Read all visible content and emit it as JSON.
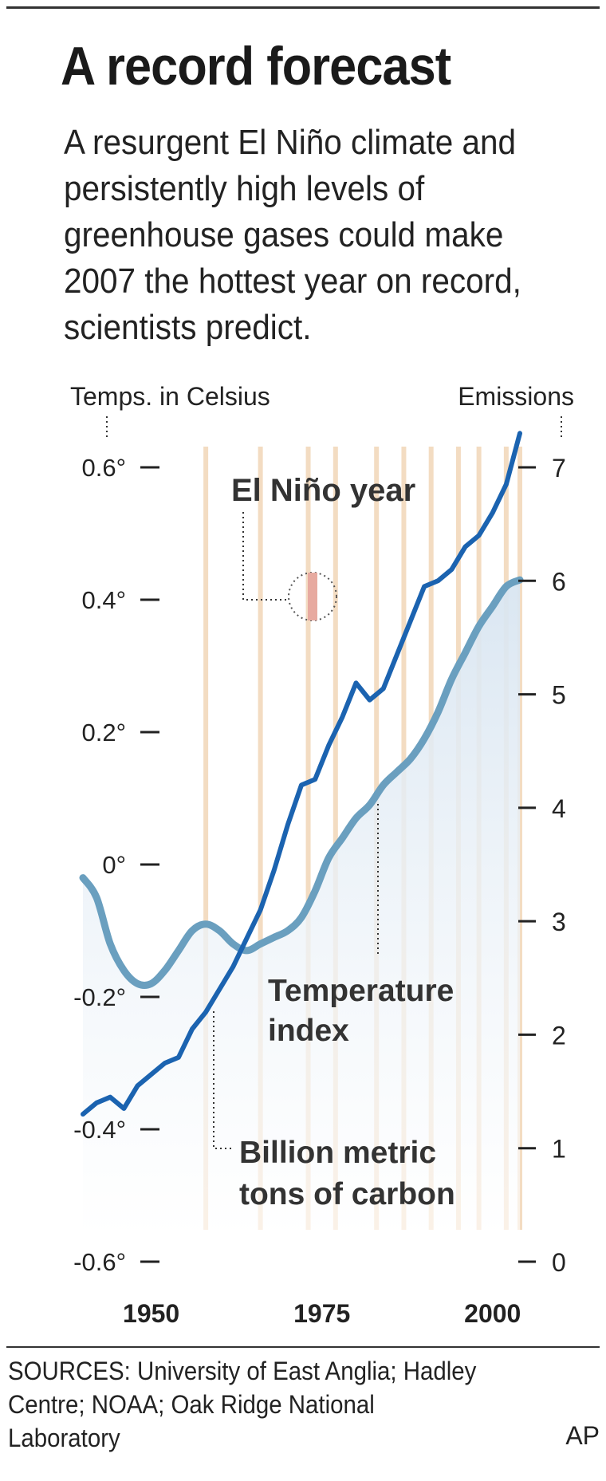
{
  "title": "A record forecast",
  "subtitle": "A resurgent El Niño climate and persistently high levels of greenhouse gases could make 2007 the hottest year on record, scientists predict.",
  "sources": "SOURCES: University of East Anglia; Hadley Centre; NOAA; Oak Ridge National Laboratory",
  "credit": "AP",
  "colors": {
    "temperature": "#6a9fbf",
    "temperature_fill": "#dde8f2",
    "emissions": "#1b63b0",
    "el_nino": "#f3dcc2",
    "el_nino_marker": "#e7aaa0"
  },
  "chart_data": {
    "type": "line",
    "y_left_label": "Temps. in Celsius",
    "y_right_label": "Emissions",
    "y_left_range": [
      -0.6,
      0.6
    ],
    "y_right_range": [
      0,
      7
    ],
    "x_range": [
      1940,
      2004
    ],
    "x_ticks": [
      "1950",
      "1975",
      "2000"
    ],
    "x_tick_values": [
      1950,
      1975,
      2000
    ],
    "y_left_ticks": [
      "0.6°",
      "0.4°",
      "0.2°",
      "0°",
      "-0.2°",
      "-0.4°",
      "-0.6°"
    ],
    "y_left_tick_values": [
      0.6,
      0.4,
      0.2,
      0,
      -0.2,
      -0.4,
      -0.6
    ],
    "y_right_ticks": [
      "7",
      "6",
      "5",
      "4",
      "3",
      "2",
      "1",
      "0"
    ],
    "y_right_tick_values": [
      7,
      6,
      5,
      4,
      3,
      2,
      1,
      0
    ],
    "el_nino_years": [
      1958,
      1966,
      1973,
      1977,
      1983,
      1987,
      1991,
      1995,
      1998,
      2002,
      2004
    ],
    "legend_el_nino": "El Niño year",
    "label_temperature": "Temperature index",
    "label_emissions": "Billion metric tons of carbon",
    "series": [
      {
        "name": "Temperature index",
        "axis": "left",
        "x": [
          1940,
          1942,
          1944,
          1946,
          1948,
          1950,
          1952,
          1954,
          1956,
          1958,
          1960,
          1962,
          1964,
          1966,
          1968,
          1970,
          1972,
          1974,
          1976,
          1978,
          1980,
          1982,
          1984,
          1986,
          1988,
          1990,
          1992,
          1994,
          1996,
          1998,
          2000,
          2002,
          2004
        ],
        "y": [
          -0.02,
          -0.05,
          -0.12,
          -0.16,
          -0.18,
          -0.18,
          -0.16,
          -0.13,
          -0.1,
          -0.09,
          -0.1,
          -0.12,
          -0.13,
          -0.12,
          -0.11,
          -0.1,
          -0.08,
          -0.04,
          0.01,
          0.04,
          0.07,
          0.09,
          0.12,
          0.14,
          0.16,
          0.19,
          0.23,
          0.28,
          0.32,
          0.36,
          0.39,
          0.42,
          0.43
        ]
      },
      {
        "name": "Billion metric tons of carbon",
        "axis": "right",
        "x": [
          1940,
          1942,
          1944,
          1946,
          1948,
          1950,
          1952,
          1954,
          1956,
          1958,
          1960,
          1962,
          1964,
          1966,
          1968,
          1970,
          1972,
          1974,
          1976,
          1978,
          1980,
          1982,
          1984,
          1986,
          1988,
          1990,
          1992,
          1994,
          1996,
          1998,
          2000,
          2002,
          2004
        ],
        "y": [
          1.3,
          1.4,
          1.45,
          1.35,
          1.55,
          1.65,
          1.75,
          1.8,
          2.05,
          2.2,
          2.4,
          2.6,
          2.85,
          3.1,
          3.45,
          3.85,
          4.2,
          4.25,
          4.55,
          4.8,
          5.1,
          4.95,
          5.05,
          5.35,
          5.65,
          5.95,
          6.0,
          6.1,
          6.3,
          6.4,
          6.6,
          6.85,
          7.3
        ]
      }
    ],
    "grid": false
  }
}
